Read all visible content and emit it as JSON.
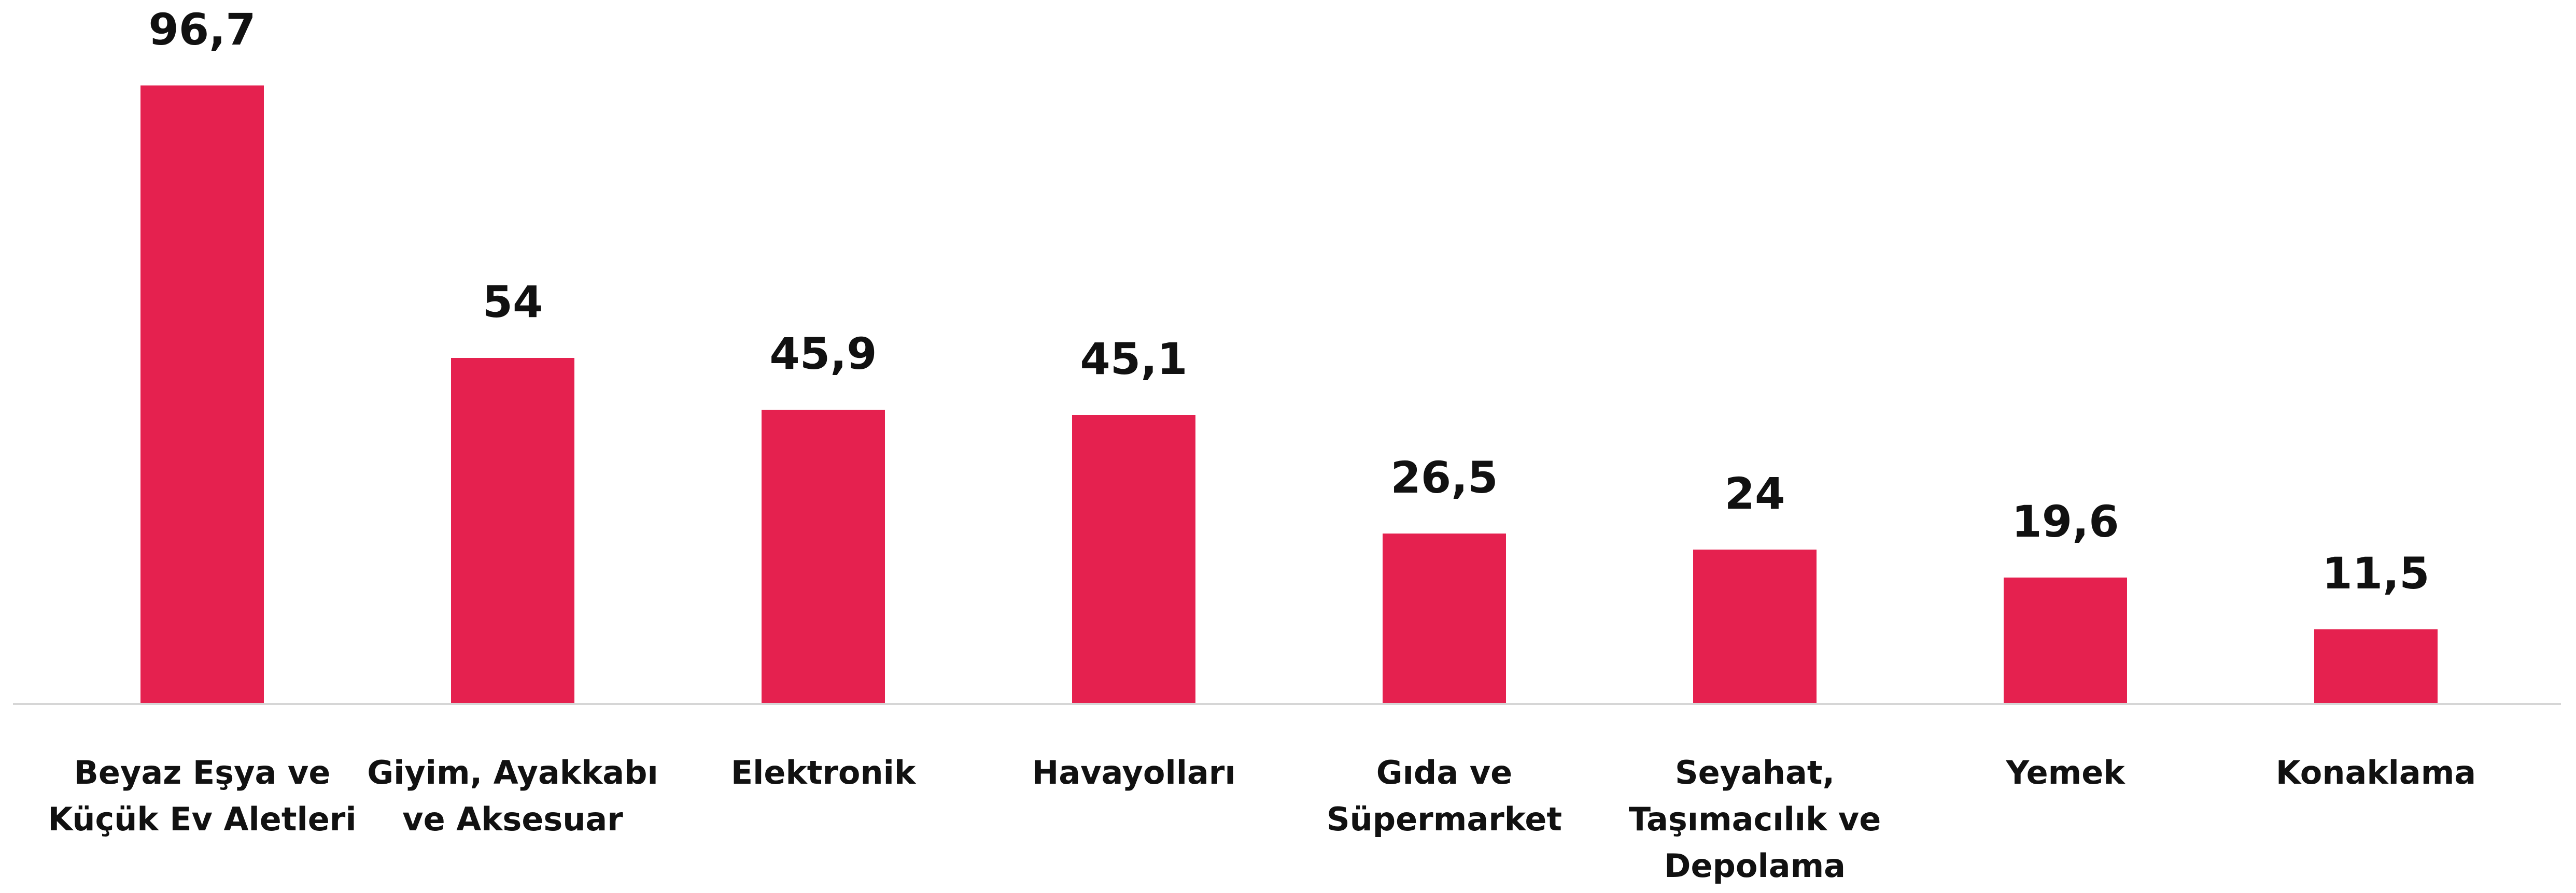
{
  "chart_data": {
    "type": "bar",
    "categories": [
      "Beyaz Eşya ve Küçük Ev Aletleri",
      "Giyim, Ayakkabı ve Aksesuar",
      "Elektronik",
      "Havayolları",
      "Gıda ve Süpermarket",
      "Seyahat, Taşımacılık ve Depolama",
      "Yemek",
      "Konaklama"
    ],
    "values": [
      96.7,
      54,
      45.9,
      45.1,
      26.5,
      24,
      19.6,
      11.5
    ],
    "value_labels": [
      "96,7",
      "54",
      "45,9",
      "45,1",
      "26,5",
      "24",
      "19,6",
      "11,5"
    ],
    "color": "#e5214f"
  }
}
